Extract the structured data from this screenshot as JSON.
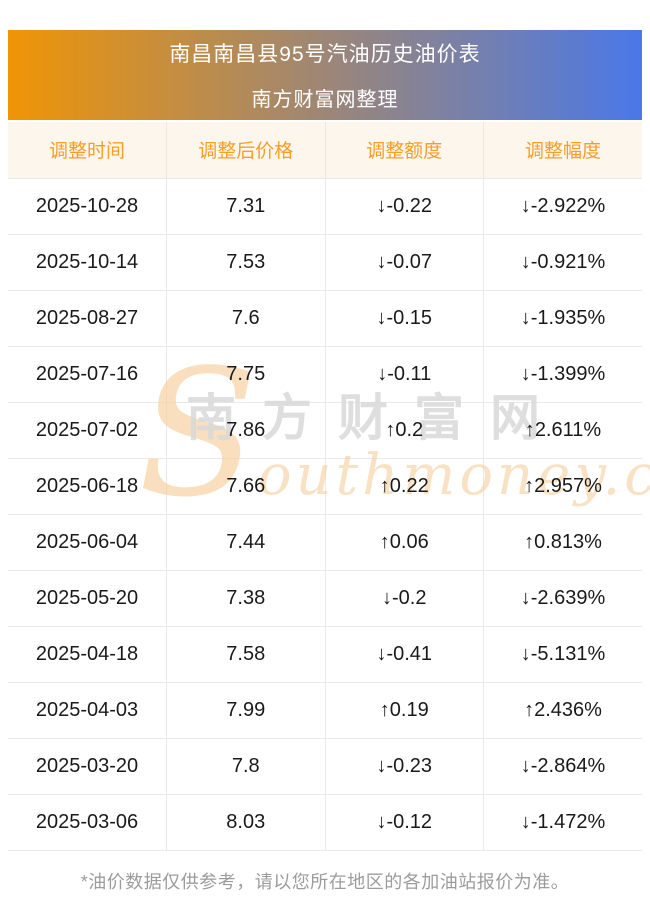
{
  "banner": {
    "title": "南昌南昌县95号汽油历史油价表",
    "subtitle": "南方财富网整理"
  },
  "table": {
    "columns": [
      "调整时间",
      "调整后价格",
      "调整额度",
      "调整幅度"
    ],
    "rows": [
      {
        "date": "2025-10-28",
        "price": "7.31",
        "change": "↓-0.22",
        "change_pct": "↓-2.922%",
        "trend": "down"
      },
      {
        "date": "2025-10-14",
        "price": "7.53",
        "change": "↓-0.07",
        "change_pct": "↓-0.921%",
        "trend": "down"
      },
      {
        "date": "2025-08-27",
        "price": "7.6",
        "change": "↓-0.15",
        "change_pct": "↓-1.935%",
        "trend": "down"
      },
      {
        "date": "2025-07-16",
        "price": "7.75",
        "change": "↓-0.11",
        "change_pct": "↓-1.399%",
        "trend": "down"
      },
      {
        "date": "2025-07-02",
        "price": "7.86",
        "change": "↑0.2",
        "change_pct": "↑2.611%",
        "trend": "up"
      },
      {
        "date": "2025-06-18",
        "price": "7.66",
        "change": "↑0.22",
        "change_pct": "↑2.957%",
        "trend": "up"
      },
      {
        "date": "2025-06-04",
        "price": "7.44",
        "change": "↑0.06",
        "change_pct": "↑0.813%",
        "trend": "up"
      },
      {
        "date": "2025-05-20",
        "price": "7.38",
        "change": "↓-0.2",
        "change_pct": "↓-2.639%",
        "trend": "down"
      },
      {
        "date": "2025-04-18",
        "price": "7.58",
        "change": "↓-0.41",
        "change_pct": "↓-5.131%",
        "trend": "down"
      },
      {
        "date": "2025-04-03",
        "price": "7.99",
        "change": "↑0.19",
        "change_pct": "↑2.436%",
        "trend": "up"
      },
      {
        "date": "2025-03-20",
        "price": "7.8",
        "change": "↓-0.23",
        "change_pct": "↓-2.864%",
        "trend": "down"
      },
      {
        "date": "2025-03-06",
        "price": "8.03",
        "change": "↓-0.12",
        "change_pct": "↓-1.472%",
        "trend": "down"
      }
    ]
  },
  "watermark": {
    "cn": "南方财富网",
    "en_initial": "S",
    "en_rest": "outhmoney.com"
  },
  "footer": {
    "note": "*油价数据仅供参考，请以您所在地区的各加油站报价为准。"
  },
  "colors": {
    "up": "#fe0000",
    "down": "#149314",
    "header_text": "#fa9d28",
    "header_bg": "#fdf6ec",
    "grad_from": "#f09505",
    "grad_to": "#4a78e8",
    "line": "#e9e9e9",
    "footer_text": "#9c9c9c"
  }
}
